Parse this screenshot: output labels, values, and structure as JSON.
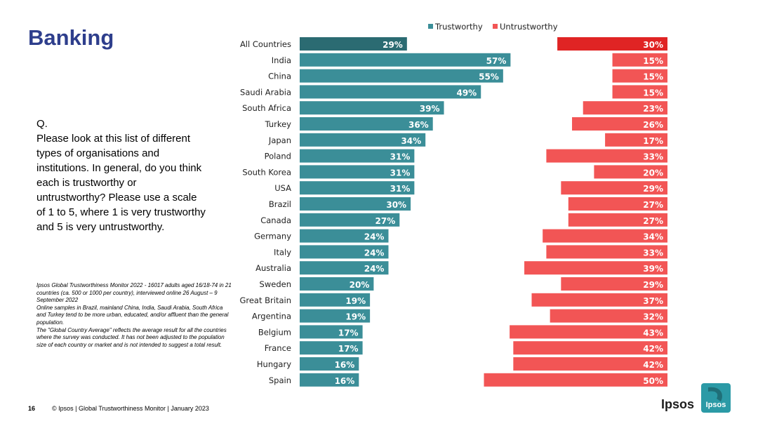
{
  "page": {
    "title": "Banking",
    "question_label": "Q.",
    "question": "Please look at this list of different types of organisations and institutions. In general, do you think each is trustworthy or untrustworthy? Please use a scale of 1 to 5, where 1 is very trustworthy and 5 is very untrustworthy.",
    "notes": [
      "Ipsos Global Trustworthiness Monitor 2022 - 16017 adults aged 16/18-74 in 21 countries (ca. 500 or 1000 per country), interviewed online 26 August – 9 September 2022",
      "Online samples in Brazil, mainland China, India, Saudi Arabia, South Africa and Turkey tend to be more urban, educated, and/or affluent than the general population.",
      "The \"Global Country Average\" reflects the average result for all the countries where the survey was conducted. It has not been adjusted to the population size of each country or market and is not intended to suggest a total result."
    ],
    "page_number": "16",
    "footer": "© Ipsos | Global Trustworthiness Monitor | January 2023",
    "logo_text": "Ipsos",
    "logo_badge_text": "Ipsos"
  },
  "colors": {
    "title": "#2e3e8c",
    "trustworthy": "#3b8e98",
    "trustworthy_highlight": "#2b6b72",
    "untrustworthy": "#f25555",
    "untrustworthy_highlight": "#e02424",
    "logo_badge": "#2b9aa6"
  },
  "chart_data": {
    "type": "bar",
    "orientation": "horizontal",
    "title": "",
    "legend_position": "top",
    "categories": [
      "All Countries",
      "India",
      "China",
      "Saudi Arabia",
      "South Africa",
      "Turkey",
      "Japan",
      "Poland",
      "South Korea",
      "USA",
      "Brazil",
      "Canada",
      "Germany",
      "Italy",
      "Australia",
      "Sweden",
      "Great Britain",
      "Argentina",
      "Belgium",
      "France",
      "Hungary",
      "Spain"
    ],
    "series": [
      {
        "name": "Trustworthy",
        "values": [
          29,
          57,
          55,
          49,
          39,
          36,
          34,
          31,
          31,
          31,
          30,
          27,
          24,
          24,
          24,
          20,
          19,
          19,
          17,
          17,
          16,
          16
        ]
      },
      {
        "name": "Untrustworthy",
        "values": [
          30,
          15,
          15,
          15,
          23,
          26,
          17,
          33,
          20,
          29,
          27,
          27,
          34,
          33,
          39,
          29,
          37,
          32,
          43,
          42,
          42,
          50
        ]
      }
    ],
    "value_suffix": "%",
    "highlight_category": "All Countries"
  }
}
